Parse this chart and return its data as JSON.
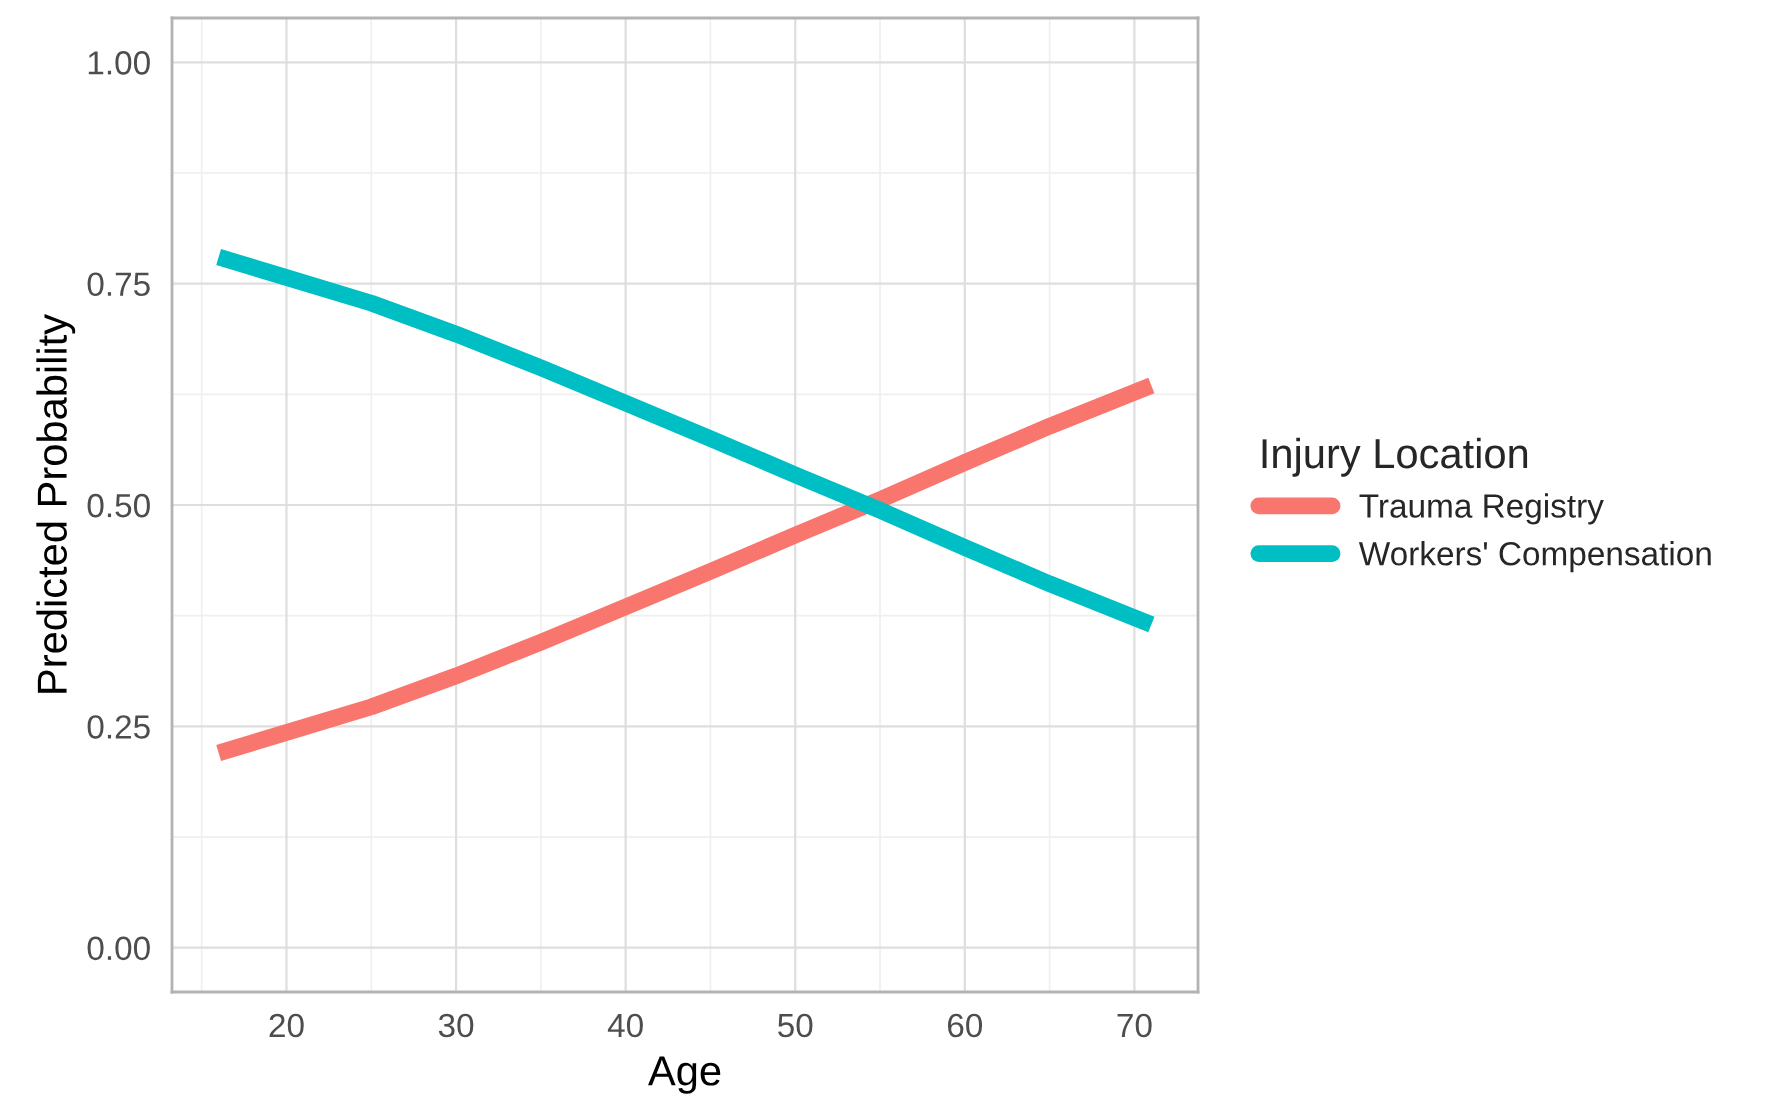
{
  "chart_data": {
    "type": "line",
    "xlabel": "Age",
    "ylabel": "Predicted Probability",
    "legend_title": "Injury Location",
    "x": [
      16,
      20,
      25,
      30,
      35,
      40,
      45,
      50,
      55,
      60,
      65,
      71
    ],
    "series": [
      {
        "name": "Trauma Registry",
        "color": "#f8766d",
        "values": [
          0.22,
          0.243,
          0.272,
          0.307,
          0.345,
          0.385,
          0.425,
          0.466,
          0.506,
          0.548,
          0.589,
          0.635
        ]
      },
      {
        "name": "Workers' Compensation",
        "color": "#00bfc4",
        "values": [
          0.78,
          0.757,
          0.728,
          0.693,
          0.655,
          0.615,
          0.575,
          0.534,
          0.494,
          0.452,
          0.411,
          0.365
        ]
      }
    ],
    "xlim": [
      13.25,
      73.75
    ],
    "xticks": [
      20,
      30,
      40,
      50,
      60,
      70
    ],
    "ylim": [
      -0.05,
      1.05
    ],
    "yticks": [
      {
        "value": 0,
        "label": "0.00"
      },
      {
        "value": 0.25,
        "label": "0.25"
      },
      {
        "value": 0.5,
        "label": "0.50"
      },
      {
        "value": 0.75,
        "label": "0.75"
      },
      {
        "value": 1,
        "label": "1.00"
      }
    ],
    "grid": true,
    "legend": "right",
    "line_style": "solid",
    "marker": "none"
  }
}
